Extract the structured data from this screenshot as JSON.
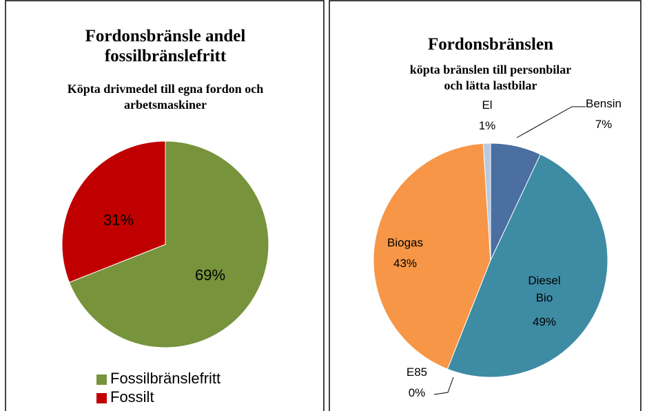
{
  "chart_data": [
    {
      "type": "pie",
      "title": "Fordonsbränsle andel fossilbränslefritt",
      "subtitle": "Köpta drivmedel till egna fordon och arbetsmaskiner",
      "categories": [
        "Fossilbränslefritt",
        "Fossilt"
      ],
      "values": [
        69,
        31
      ],
      "value_labels": [
        "69%",
        "31%"
      ],
      "colors": [
        "#77933c",
        "#c00000"
      ],
      "legend": "bottom"
    },
    {
      "type": "pie",
      "title": "Fordonsbränslen",
      "subtitle": "köpta bränslen till personbilar och lätta lastbilar",
      "categories": [
        "Bensin",
        "Diesel Bio",
        "E85",
        "Biogas",
        "El"
      ],
      "values": [
        7,
        49,
        0,
        43,
        1
      ],
      "value_labels": [
        "7%",
        "49%",
        "0%",
        "43%",
        "1%"
      ],
      "colors": [
        "#4a6fa0",
        "#3e8ba4",
        "#9bbb59",
        "#f79646",
        "#b9c9e1"
      ]
    }
  ]
}
